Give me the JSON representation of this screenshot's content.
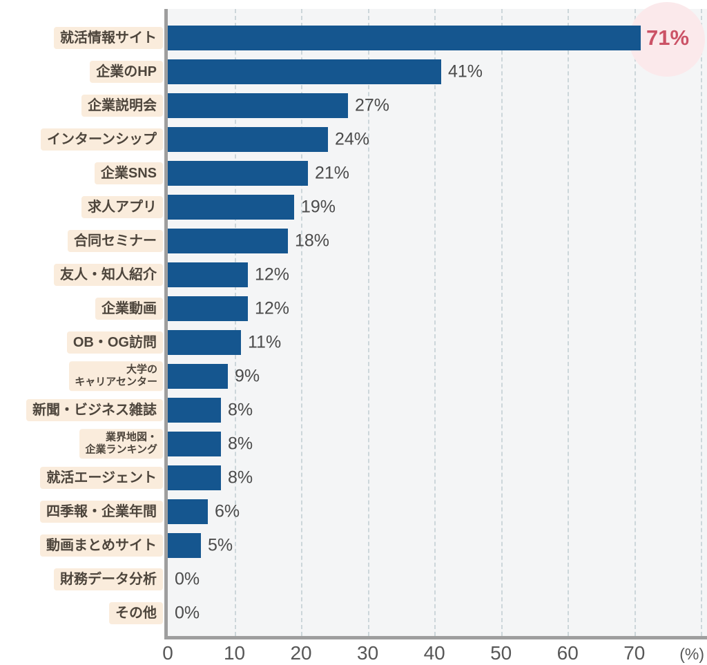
{
  "chart_data": {
    "type": "bar",
    "orientation": "horizontal",
    "title": "",
    "xlabel": "(%)",
    "ylabel": "",
    "categories": [
      {
        "label": "就活情報サイト",
        "small": false
      },
      {
        "label": "企業のHP",
        "small": false
      },
      {
        "label": "企業説明会",
        "small": false
      },
      {
        "label": "インターンシップ",
        "small": false
      },
      {
        "label": "企業SNS",
        "small": false
      },
      {
        "label": "求人アプリ",
        "small": false
      },
      {
        "label": "合同セミナー",
        "small": false
      },
      {
        "label": "友人・知人紹介",
        "small": false
      },
      {
        "label": "企業動画",
        "small": false
      },
      {
        "label": "OB・OG訪問",
        "small": false
      },
      {
        "label": "大学の\nキャリアセンター",
        "small": true
      },
      {
        "label": "新聞・ビジネス雑誌",
        "small": false
      },
      {
        "label": "業界地図・\n企業ランキング",
        "small": true
      },
      {
        "label": "就活エージェント",
        "small": false
      },
      {
        "label": "四季報・企業年間",
        "small": false
      },
      {
        "label": "動画まとめサイト",
        "small": false
      },
      {
        "label": "財務データ分析",
        "small": false
      },
      {
        "label": "その他",
        "small": false
      }
    ],
    "values": [
      71,
      41,
      27,
      24,
      21,
      19,
      18,
      12,
      12,
      11,
      9,
      8,
      8,
      8,
      6,
      5,
      0,
      0
    ],
    "value_labels": [
      "71%",
      "41%",
      "27%",
      "24%",
      "21%",
      "19%",
      "18%",
      "12%",
      "12%",
      "11%",
      "9%",
      "8%",
      "8%",
      "8%",
      "6%",
      "5%",
      "0%",
      "0%"
    ],
    "highlight_index": 0,
    "xlim": [
      0,
      80.9
    ],
    "x_ticks": [
      0,
      10,
      20,
      30,
      40,
      50,
      60,
      70
    ],
    "x_unit": "(%)",
    "grid": "vertical-dashed",
    "legend": "none",
    "colors": {
      "bar": "#15568f",
      "plot_bg": "#f4f5f6",
      "axis": "#9e9e9e",
      "gridline": "#ccd6da",
      "category_label_bg": "#faecdc",
      "category_label_text": "#4d453c",
      "value_text": "#4b4b4b",
      "highlight_text": "#cb5266",
      "highlight_circle": "#fbe9eb",
      "tick_text": "#575757"
    }
  }
}
